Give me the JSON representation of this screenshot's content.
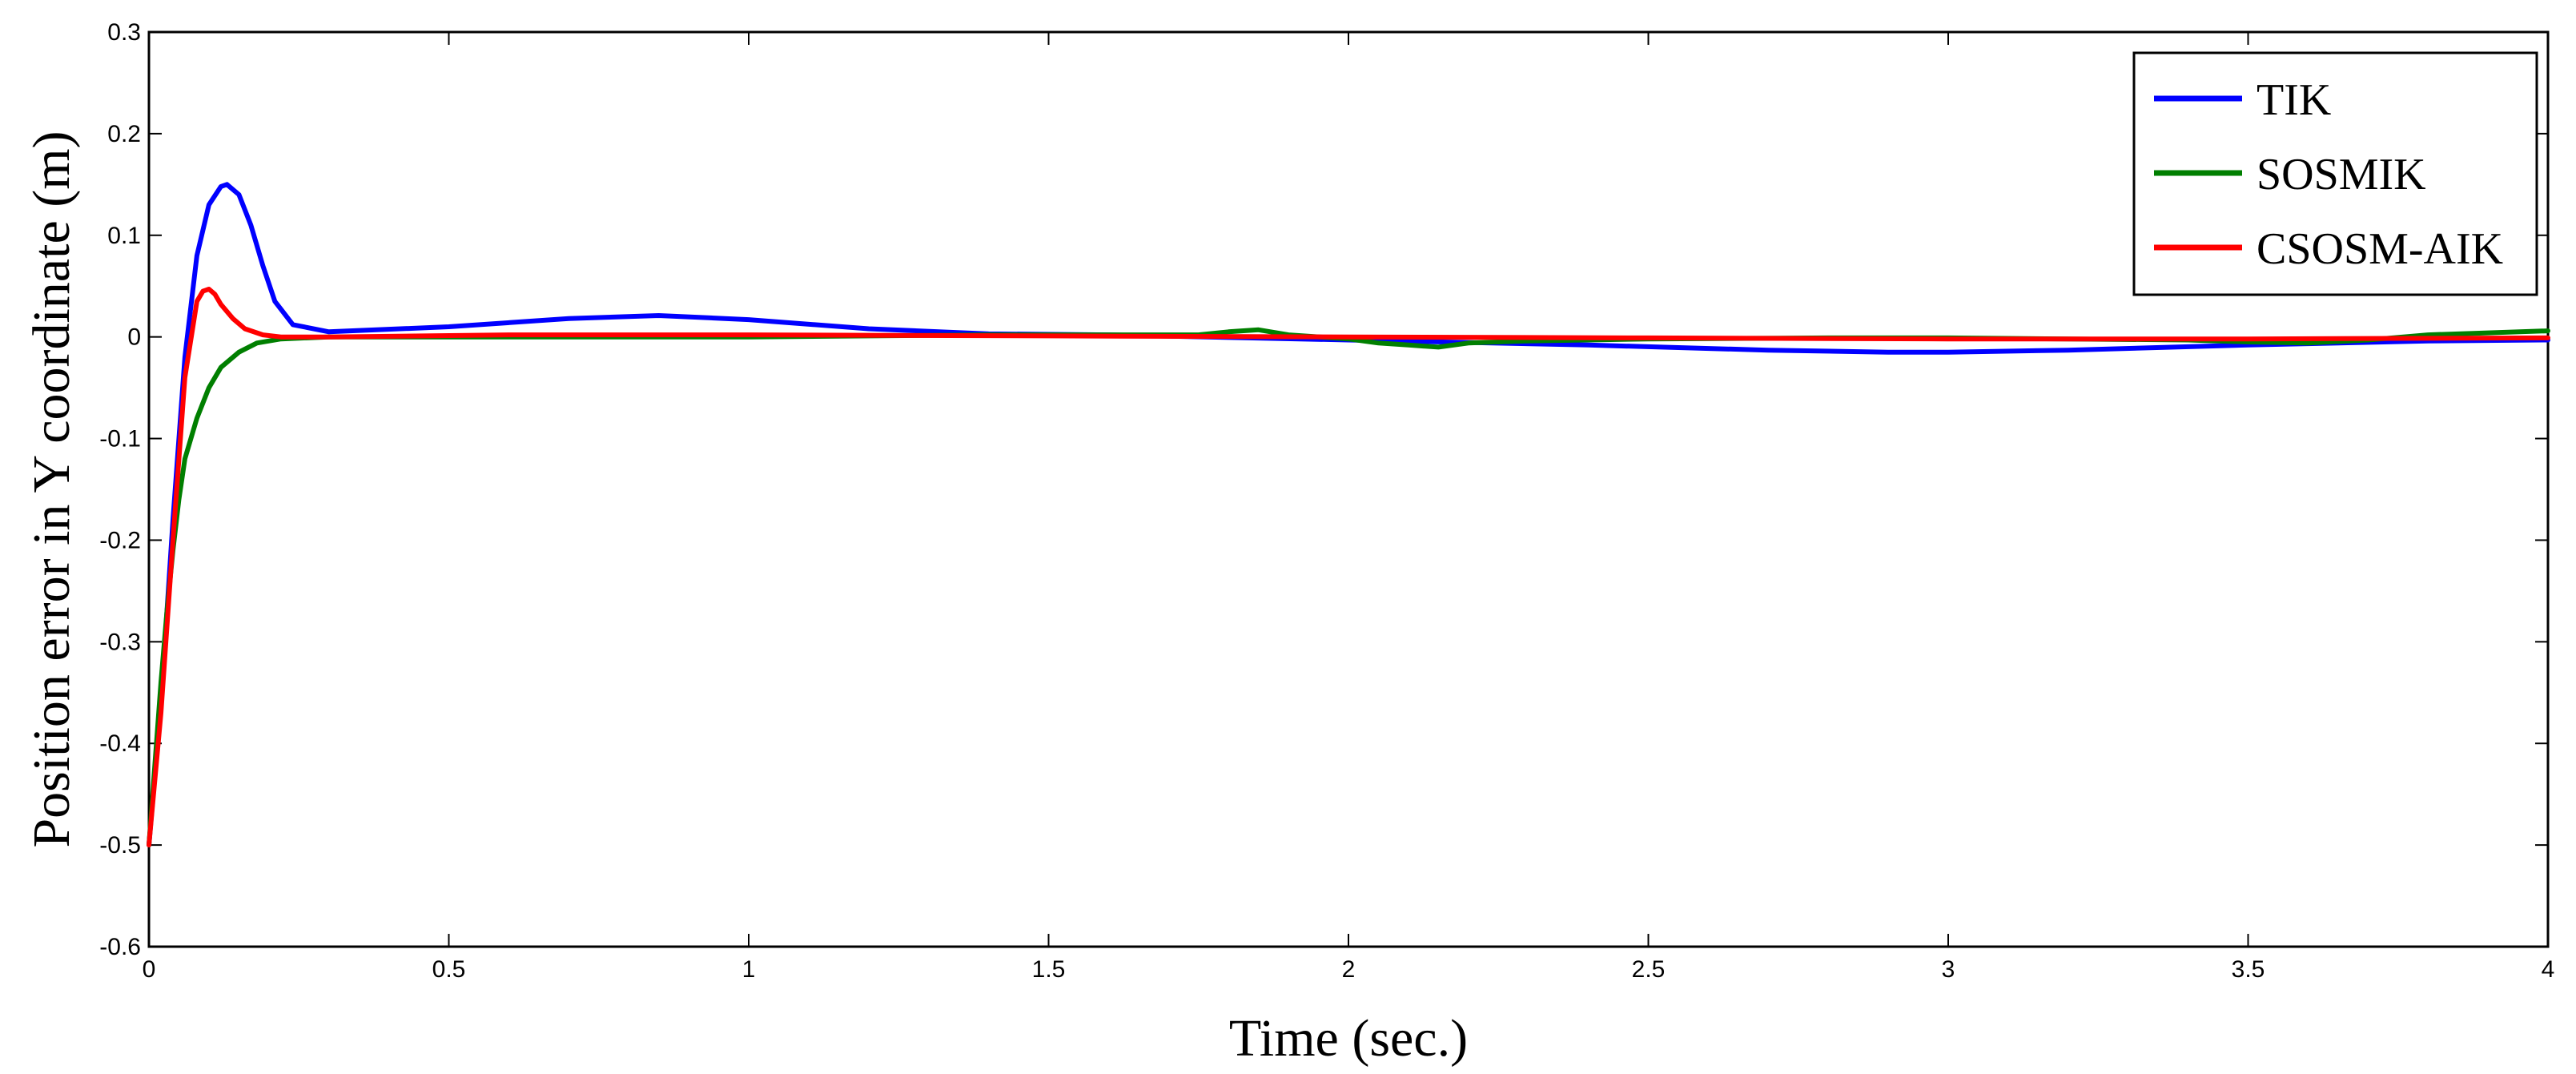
{
  "chart_data": {
    "type": "line",
    "title": "",
    "xlabel": "Time (sec.)",
    "ylabel": "Position error in Y coordinate (m)",
    "xlim": [
      0,
      4
    ],
    "ylim": [
      -0.6,
      0.3
    ],
    "xticks": [
      "0",
      "0.5",
      "1",
      "1.5",
      "2",
      "2.5",
      "3",
      "3.5",
      "4"
    ],
    "yticks": [
      "0.3",
      "0.2",
      "0.1",
      "0",
      "-0.1",
      "-0.2",
      "-0.3",
      "-0.4",
      "-0.5",
      "-0.6"
    ],
    "grid": false,
    "legend_position": "top-right",
    "series": [
      {
        "name": "TIK",
        "color": "#0000ff",
        "x": [
          0,
          0.02,
          0.04,
          0.06,
          0.08,
          0.1,
          0.12,
          0.13,
          0.15,
          0.17,
          0.19,
          0.21,
          0.24,
          0.3,
          0.5,
          0.7,
          0.85,
          1.0,
          1.2,
          1.4,
          1.6,
          2.0,
          2.4,
          2.7,
          2.9,
          3.0,
          3.2,
          3.5,
          3.8,
          4.0
        ],
        "y": [
          -0.5,
          -0.36,
          -0.18,
          -0.02,
          0.08,
          0.13,
          0.148,
          0.15,
          0.14,
          0.11,
          0.07,
          0.035,
          0.012,
          0.005,
          0.01,
          0.018,
          0.021,
          0.017,
          0.008,
          0.003,
          0.002,
          -0.003,
          -0.008,
          -0.013,
          -0.015,
          -0.015,
          -0.013,
          -0.008,
          -0.004,
          -0.003
        ]
      },
      {
        "name": "SOSMIK",
        "color": "#007f00",
        "x": [
          0,
          0.01,
          0.02,
          0.03,
          0.04,
          0.05,
          0.06,
          0.08,
          0.1,
          0.12,
          0.15,
          0.18,
          0.22,
          0.3,
          0.6,
          1.0,
          1.4,
          1.75,
          1.8,
          1.85,
          1.9,
          2.0,
          2.05,
          2.1,
          2.15,
          2.2,
          2.3,
          2.5,
          2.8,
          3.0,
          3.2,
          3.4,
          3.5,
          3.6,
          3.7,
          3.8,
          3.9,
          4.0
        ],
        "y": [
          -0.5,
          -0.42,
          -0.34,
          -0.27,
          -0.21,
          -0.16,
          -0.12,
          -0.08,
          -0.05,
          -0.03,
          -0.015,
          -0.006,
          -0.002,
          0,
          0,
          0,
          0.002,
          0.002,
          0.005,
          0.007,
          0.002,
          -0.002,
          -0.006,
          -0.008,
          -0.01,
          -0.006,
          -0.004,
          -0.002,
          -0.001,
          -0.001,
          -0.002,
          -0.003,
          -0.005,
          -0.006,
          -0.003,
          0.002,
          0.004,
          0.006
        ]
      },
      {
        "name": "CSOSM-AIK",
        "color": "#ff0000",
        "x": [
          0,
          0.02,
          0.04,
          0.06,
          0.08,
          0.09,
          0.1,
          0.11,
          0.12,
          0.14,
          0.16,
          0.19,
          0.22,
          0.3,
          0.6,
          1.0,
          1.5,
          2.0,
          2.5,
          3.0,
          3.5,
          4.0
        ],
        "y": [
          -0.5,
          -0.37,
          -0.2,
          -0.04,
          0.035,
          0.045,
          0.047,
          0.042,
          0.032,
          0.018,
          0.008,
          0.002,
          0,
          0,
          0.002,
          0.002,
          0.001,
          0,
          -0.001,
          -0.002,
          -0.002,
          -0.001
        ]
      }
    ]
  }
}
